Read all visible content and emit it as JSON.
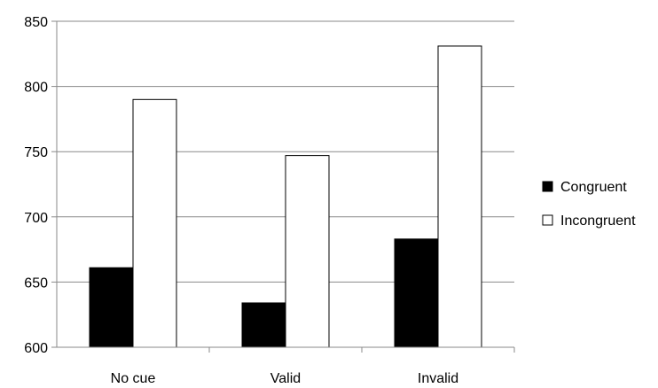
{
  "chart_data": {
    "type": "bar",
    "title": "",
    "xlabel": "",
    "ylabel": "",
    "categories": [
      "No cue",
      "Valid",
      "Invalid"
    ],
    "series": [
      {
        "name": "Congruent",
        "values": [
          661,
          634,
          683
        ],
        "color": "#000000"
      },
      {
        "name": "Incongruent",
        "values": [
          790,
          747,
          831
        ],
        "color": "#ffffff"
      }
    ],
    "ylim": [
      600,
      850
    ],
    "yticks": [
      600,
      650,
      700,
      750,
      800,
      850
    ],
    "grid": true,
    "legend_position": "right"
  }
}
